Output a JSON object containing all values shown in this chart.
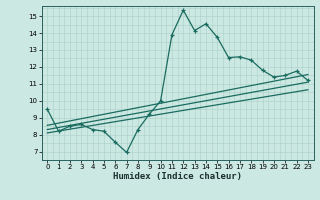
{
  "xlabel": "Humidex (Indice chaleur)",
  "bg_color": "#cce8e2",
  "grid_color": "#b0d4cc",
  "line_color": "#1a6b60",
  "xlim": [
    -0.5,
    23.5
  ],
  "ylim": [
    6.5,
    15.6
  ],
  "yticks": [
    7,
    8,
    9,
    10,
    11,
    12,
    13,
    14,
    15
  ],
  "xticks": [
    0,
    1,
    2,
    3,
    4,
    5,
    6,
    7,
    8,
    9,
    10,
    11,
    12,
    13,
    14,
    15,
    16,
    17,
    18,
    19,
    20,
    21,
    22,
    23
  ],
  "line1_x": [
    0,
    1,
    2,
    3,
    4,
    5,
    6,
    7,
    8,
    9,
    10,
    11,
    12,
    13,
    14,
    15,
    16,
    17,
    18,
    19,
    20,
    21,
    22,
    23
  ],
  "line1_y": [
    9.5,
    8.2,
    8.5,
    8.6,
    8.3,
    8.2,
    7.55,
    6.95,
    8.3,
    9.2,
    10.0,
    13.9,
    15.35,
    14.15,
    14.55,
    13.75,
    12.55,
    12.6,
    12.4,
    11.8,
    11.4,
    11.5,
    11.75,
    11.2
  ],
  "line2_x": [
    0,
    23
  ],
  "line2_y": [
    8.3,
    11.1
  ],
  "line3_x": [
    0,
    23
  ],
  "line3_y": [
    8.1,
    10.65
  ],
  "line4_x": [
    0,
    23
  ],
  "line4_y": [
    8.55,
    11.55
  ]
}
